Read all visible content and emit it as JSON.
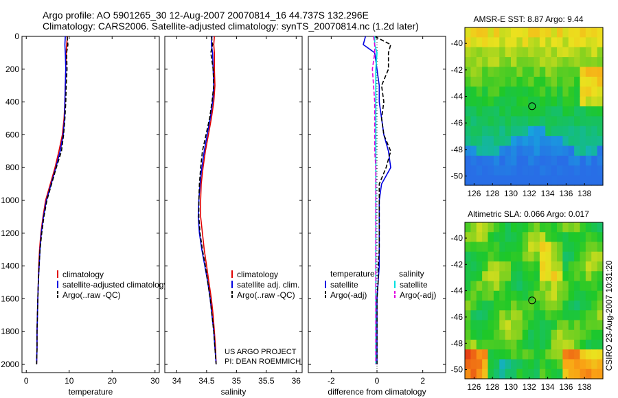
{
  "header": {
    "line1": "Argo profile: AO 5901265_30 12-Aug-2007 20070814_16 44.737S 132.296E",
    "line2": "Climatology: CARS2006. Satellite-adjusted climatology: synTS_20070814.nc (1.2d later)"
  },
  "side_text": "CSIRO 23-Aug-2007 10:31:20",
  "project_text": [
    "US ARGO PROJECT",
    "PI: DEAN ROEMMICH"
  ],
  "chart_data": [
    {
      "type": "line",
      "id": "temperature",
      "xlabel": "temperature",
      "ylabel": "",
      "xlim": [
        -1,
        31
      ],
      "ylim": [
        2050,
        0
      ],
      "xticks": [
        0,
        10,
        20,
        30
      ],
      "yticks": [
        0,
        200,
        400,
        600,
        800,
        1000,
        1200,
        1400,
        1600,
        1800,
        2000
      ],
      "legend": {
        "placement": "lower-left",
        "entries": [
          {
            "label": "climatology",
            "color": "#e00000",
            "dash": ""
          },
          {
            "label": "satellite-adjusted climatology",
            "color": "#0000e0",
            "dash": ""
          },
          {
            "label": "Argo(..raw -QC)",
            "color": "#000000",
            "dash": "6,3"
          }
        ]
      },
      "series": [
        {
          "color": "#e00000",
          "dash": "",
          "width": 1.6,
          "x": [
            9.6,
            9.4,
            9.3,
            9.2,
            9.1,
            9.0,
            8.8,
            8.4,
            7.6,
            6.7,
            5.6,
            4.5,
            3.9,
            3.4,
            3.1,
            2.9,
            2.8,
            2.7,
            2.6,
            2.5,
            2.5,
            2.4
          ],
          "y": [
            0,
            50,
            100,
            200,
            300,
            400,
            500,
            600,
            700,
            800,
            900,
            1000,
            1100,
            1200,
            1300,
            1400,
            1500,
            1600,
            1700,
            1800,
            1900,
            2000
          ]
        },
        {
          "color": "#0000e0",
          "dash": "",
          "width": 1.6,
          "x": [
            9.1,
            9.0,
            9.1,
            9.2,
            9.1,
            9.0,
            8.9,
            8.6,
            7.9,
            6.9,
            5.8,
            4.7,
            4.0,
            3.5,
            3.2,
            3.0,
            2.8,
            2.7,
            2.6,
            2.5,
            2.5,
            2.4
          ],
          "y": [
            0,
            50,
            100,
            200,
            300,
            400,
            500,
            600,
            700,
            800,
            900,
            1000,
            1100,
            1200,
            1300,
            1400,
            1500,
            1600,
            1700,
            1800,
            1900,
            2000
          ]
        },
        {
          "color": "#000000",
          "dash": "6,3",
          "width": 1.6,
          "x": [
            9.5,
            9.7,
            9.4,
            9.5,
            9.3,
            9.2,
            9.0,
            8.7,
            8.2,
            7.0,
            5.9,
            4.8,
            4.1,
            3.6,
            3.2,
            3.0,
            2.8,
            2.7,
            2.6,
            2.5,
            2.5,
            2.4
          ],
          "y": [
            0,
            50,
            100,
            200,
            300,
            400,
            500,
            600,
            700,
            800,
            900,
            1000,
            1100,
            1200,
            1300,
            1400,
            1500,
            1600,
            1700,
            1800,
            1900,
            2000
          ]
        }
      ]
    },
    {
      "type": "line",
      "id": "salinity",
      "xlabel": "salinity",
      "ylabel": "",
      "xlim": [
        33.8,
        36.1
      ],
      "ylim": [
        2050,
        0
      ],
      "xticks": [
        34,
        34.5,
        35,
        35.5,
        36
      ],
      "yticks": [
        0,
        200,
        400,
        600,
        800,
        1000,
        1200,
        1400,
        1600,
        1800,
        2000
      ],
      "legend": {
        "placement": "lower-right",
        "entries": [
          {
            "label": "climatology",
            "color": "#e00000",
            "dash": ""
          },
          {
            "label": "satellite adj. clim.",
            "color": "#0000e0",
            "dash": ""
          },
          {
            "label": "Argo(..raw -QC)",
            "color": "#000000",
            "dash": "6,3"
          }
        ]
      },
      "series": [
        {
          "color": "#e00000",
          "dash": "",
          "width": 1.6,
          "x": [
            34.63,
            34.62,
            34.63,
            34.63,
            34.64,
            34.62,
            34.58,
            34.53,
            34.48,
            34.44,
            34.41,
            34.4,
            34.4,
            34.43,
            34.46,
            34.5,
            34.54,
            34.58,
            34.61,
            34.63,
            34.65,
            34.66
          ],
          "y": [
            0,
            50,
            100,
            200,
            300,
            400,
            500,
            600,
            700,
            800,
            900,
            1000,
            1100,
            1200,
            1300,
            1400,
            1500,
            1600,
            1700,
            1800,
            1900,
            2000
          ]
        },
        {
          "color": "#0000e0",
          "dash": "",
          "width": 1.6,
          "x": [
            34.59,
            34.58,
            34.6,
            34.61,
            34.62,
            34.6,
            34.56,
            34.51,
            34.46,
            34.42,
            34.39,
            34.37,
            34.36,
            34.38,
            34.42,
            34.47,
            34.52,
            34.56,
            34.59,
            34.62,
            34.64,
            34.66
          ],
          "y": [
            0,
            50,
            100,
            200,
            300,
            400,
            500,
            600,
            700,
            800,
            900,
            1000,
            1100,
            1200,
            1300,
            1400,
            1500,
            1600,
            1700,
            1800,
            1900,
            2000
          ]
        },
        {
          "color": "#000000",
          "dash": "6,3",
          "width": 1.6,
          "x": [
            34.58,
            34.6,
            34.57,
            34.61,
            34.62,
            34.59,
            34.55,
            34.49,
            34.43,
            34.4,
            34.38,
            34.37,
            34.37,
            34.39,
            34.43,
            34.48,
            34.52,
            34.56,
            34.59,
            34.62,
            34.64,
            34.66
          ],
          "y": [
            0,
            50,
            100,
            200,
            300,
            400,
            500,
            600,
            700,
            800,
            900,
            1000,
            1100,
            1200,
            1300,
            1400,
            1500,
            1600,
            1700,
            1800,
            1900,
            2000
          ]
        }
      ]
    },
    {
      "type": "line",
      "id": "difference",
      "xlabel": "difference from climatology",
      "ylabel": "",
      "xlim": [
        -3,
        3
      ],
      "ylim": [
        2050,
        0
      ],
      "xticks": [
        -2,
        0,
        2
      ],
      "yticks": [
        0,
        200,
        400,
        600,
        800,
        1000,
        1200,
        1400,
        1600,
        1800,
        2000
      ],
      "legend": {
        "placement": "lower-center",
        "titles": [
          "temperature",
          "salinity"
        ],
        "entries_left": [
          {
            "label": "satellite",
            "color": "#0000e0",
            "dash": ""
          },
          {
            "label": "Argo(-adj)",
            "color": "#000000",
            "dash": "6,3"
          }
        ],
        "entries_right": [
          {
            "label": "satellite",
            "color": "#00e0e0",
            "dash": ""
          },
          {
            "label": "Argo(-adj)",
            "color": "#e000e0",
            "dash": "6,3"
          }
        ]
      },
      "series": [
        {
          "color": "#0000e0",
          "dash": "",
          "width": 1.6,
          "x": [
            -0.5,
            -0.6,
            -0.1,
            0.0,
            0.1,
            0.1,
            0.2,
            0.3,
            0.5,
            0.6,
            0.2,
            0.1,
            0.1,
            0.1,
            0.1,
            0.1,
            0.05,
            0.0,
            0.0,
            0.0,
            0.0,
            0.0
          ],
          "y": [
            0,
            50,
            100,
            200,
            300,
            400,
            500,
            600,
            700,
            800,
            900,
            1000,
            1100,
            1200,
            1300,
            1400,
            1500,
            1600,
            1700,
            1800,
            1900,
            2000
          ]
        },
        {
          "color": "#000000",
          "dash": "6,3",
          "width": 1.6,
          "x": [
            -0.1,
            0.6,
            0.5,
            0.5,
            0.2,
            0.3,
            0.2,
            0.3,
            0.6,
            0.4,
            0.1,
            0.1,
            0.1,
            0.1,
            0.1,
            0.05,
            0.05,
            0.0,
            0.0,
            0.0,
            0.0,
            0.0
          ],
          "y": [
            0,
            50,
            100,
            200,
            300,
            400,
            500,
            600,
            700,
            800,
            900,
            1000,
            1100,
            1200,
            1300,
            1400,
            1500,
            1600,
            1700,
            1800,
            1900,
            2000
          ]
        },
        {
          "color": "#00e0e0",
          "dash": "",
          "width": 1.8,
          "x": [
            -0.1,
            -0.1,
            0.0,
            -0.05,
            -0.05,
            -0.05,
            -0.05,
            -0.05,
            -0.05,
            -0.05,
            -0.05,
            -0.05,
            -0.05,
            -0.05,
            -0.05,
            -0.05,
            -0.05,
            -0.05,
            -0.05,
            -0.05,
            -0.05,
            -0.05
          ],
          "y": [
            0,
            50,
            100,
            200,
            300,
            400,
            500,
            600,
            700,
            800,
            900,
            1000,
            1100,
            1200,
            1300,
            1400,
            1500,
            1600,
            1700,
            1800,
            1900,
            2000
          ]
        },
        {
          "color": "#e000e0",
          "dash": "6,3",
          "width": 1.6,
          "x": [
            -0.15,
            -0.1,
            -0.1,
            -0.2,
            -0.15,
            -0.1,
            -0.1,
            -0.1,
            -0.1,
            -0.05,
            -0.05,
            -0.05,
            -0.05,
            -0.05,
            -0.05,
            -0.05,
            -0.05,
            -0.05,
            -0.05,
            -0.05,
            -0.05,
            -0.05
          ],
          "y": [
            0,
            50,
            100,
            200,
            300,
            400,
            500,
            600,
            700,
            800,
            900,
            1000,
            1100,
            1200,
            1300,
            1400,
            1500,
            1600,
            1700,
            1800,
            1900,
            2000
          ]
        }
      ]
    },
    {
      "type": "heatmap",
      "id": "sst_map",
      "title": "AMSR-E SST: 8.87 Argo: 9.44",
      "xlim": [
        125,
        140
      ],
      "ylim": [
        -50.7,
        -38.8
      ],
      "xticks": [
        126,
        128,
        130,
        132,
        134,
        136,
        138
      ],
      "yticks": [
        -40,
        -42,
        -44,
        -46,
        -48,
        -50
      ],
      "marker": {
        "lon": 132.3,
        "lat": -44.74
      },
      "grid": {
        "nx": 24,
        "ny": 16
      }
    },
    {
      "type": "heatmap",
      "id": "sla_map",
      "title": "Altimetric SLA: 0.066 Argo: 0.017",
      "xlim": [
        125,
        140
      ],
      "ylim": [
        -50.7,
        -38.8
      ],
      "xticks": [
        126,
        128,
        130,
        132,
        134,
        136,
        138
      ],
      "yticks": [
        -40,
        -42,
        -44,
        -46,
        -48,
        -50
      ],
      "marker": {
        "lon": 132.3,
        "lat": -44.74
      },
      "grid": {
        "nx": 24,
        "ny": 16
      }
    }
  ]
}
